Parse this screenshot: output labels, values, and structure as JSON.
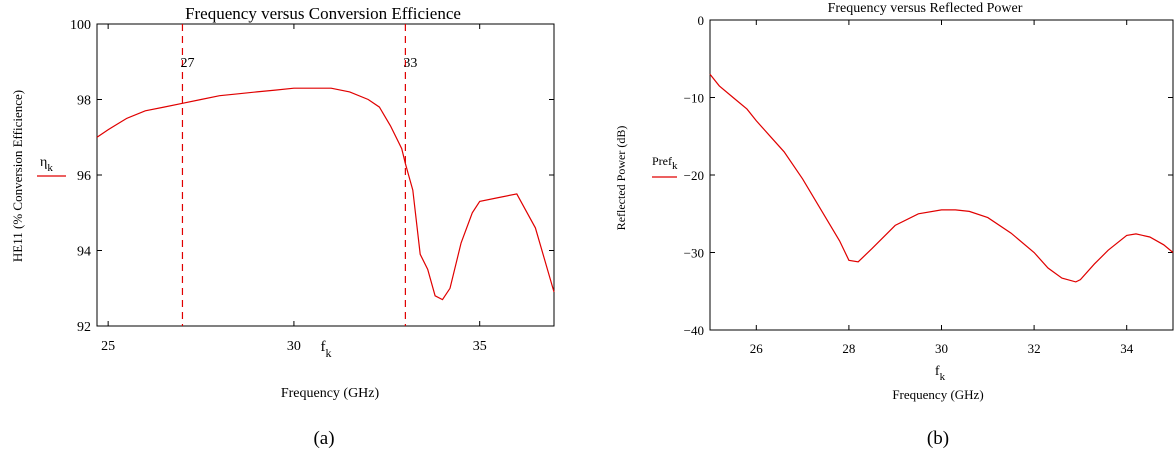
{
  "chart_data": [
    {
      "type": "line",
      "panel_label": "(a)",
      "title": "Frequency versus Conversion Efficience",
      "ylabel": "HE11 (% Conversion Efficience)",
      "xvar": "f",
      "xvar_sub": "k",
      "xlabel": "Frequency (GHz)",
      "legend": {
        "main": "η",
        "sub": "k",
        "position": "left"
      },
      "xlim": [
        24.7,
        37
      ],
      "ylim": [
        92,
        100
      ],
      "xticks": [
        25,
        30,
        35
      ],
      "yticks": [
        92,
        94,
        96,
        98,
        100
      ],
      "grid": false,
      "markers": [
        {
          "x": 27,
          "label": "27"
        },
        {
          "x": 33,
          "label": "33"
        }
      ],
      "series": [
        {
          "color": "#e00000",
          "x": [
            24.7,
            25.0,
            25.5,
            26.0,
            26.5,
            27.0,
            27.5,
            28.0,
            28.5,
            29.0,
            29.5,
            30.0,
            30.5,
            31.0,
            31.5,
            32.0,
            32.3,
            32.6,
            32.9,
            33.0,
            33.2,
            33.4,
            33.6,
            33.8,
            34.0,
            34.2,
            34.5,
            34.8,
            35.0,
            35.5,
            36.0,
            36.5,
            37.0
          ],
          "y": [
            97.0,
            97.2,
            97.5,
            97.7,
            97.8,
            97.9,
            98.0,
            98.1,
            98.15,
            98.2,
            98.25,
            98.3,
            98.3,
            98.3,
            98.2,
            98.0,
            97.8,
            97.3,
            96.7,
            96.3,
            95.6,
            93.9,
            93.5,
            92.8,
            92.7,
            93.0,
            94.2,
            95.0,
            95.3,
            95.4,
            95.5,
            94.6,
            92.9
          ]
        }
      ]
    },
    {
      "type": "line",
      "panel_label": "(b)",
      "title": "Frequency versus Reflected Power",
      "ylabel": "Reflected Power (dB)",
      "xvar": "f",
      "xvar_sub": "k",
      "xlabel": "Frequency (GHz)",
      "legend": {
        "main": "Pref",
        "sub": "k",
        "position": "left"
      },
      "xlim": [
        25,
        35
      ],
      "ylim": [
        -40,
        0
      ],
      "xticks": [
        26,
        28,
        30,
        32,
        34
      ],
      "yticks": [
        -40,
        -30,
        -20,
        -10,
        0
      ],
      "grid": false,
      "series": [
        {
          "color": "#e00000",
          "x": [
            25.0,
            25.2,
            25.5,
            25.8,
            26.0,
            26.3,
            26.6,
            27.0,
            27.4,
            27.8,
            28.0,
            28.2,
            28.5,
            29.0,
            29.5,
            30.0,
            30.3,
            30.6,
            31.0,
            31.5,
            32.0,
            32.3,
            32.6,
            32.9,
            33.0,
            33.3,
            33.6,
            34.0,
            34.2,
            34.5,
            34.8,
            35.0
          ],
          "y": [
            -7.0,
            -8.5,
            -10.0,
            -11.5,
            -13.0,
            -15.0,
            -17.0,
            -20.5,
            -24.5,
            -28.5,
            -31.0,
            -31.2,
            -29.5,
            -26.5,
            -25.0,
            -24.5,
            -24.5,
            -24.7,
            -25.5,
            -27.5,
            -30.0,
            -32.0,
            -33.3,
            -33.8,
            -33.5,
            -31.5,
            -29.7,
            -27.8,
            -27.6,
            -28.0,
            -29.0,
            -30.0
          ]
        }
      ]
    }
  ]
}
